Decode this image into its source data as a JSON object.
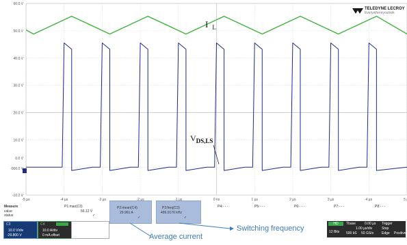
{
  "brand": {
    "name": "TELEDYNE LECROY",
    "tagline": "Everywhereyoulook"
  },
  "chart_data": {
    "type": "line",
    "x_unit": "µs",
    "xlim": [
      -5,
      5
    ],
    "x_ticks": [
      "-5 µs",
      "-4 µs",
      "-3 µs",
      "-2 µs",
      "-1 µs",
      "0 ns",
      "1 µs",
      "2 µs",
      "3 µs",
      "4 µs",
      "5 µs"
    ],
    "ylim": [
      -10.2,
      60
    ],
    "y_ticks": [
      "60.0 V",
      "50.0 V",
      "40.0 V",
      "30.0 V",
      "20.0 V",
      "10.0 V",
      "0.0 V",
      "-000.0 V",
      "-10.2 V"
    ],
    "grid": true,
    "series": [
      {
        "name": "I L",
        "color": "#3cb43c",
        "x": [
          -5.0,
          -4.8,
          -3.8,
          -2.8,
          -1.8,
          -0.8,
          0.2,
          1.2,
          2.2,
          3.2,
          4.2,
          5.0
        ],
        "y": [
          50.3,
          48.8,
          55.3,
          48.8,
          55.3,
          48.8,
          55.3,
          48.8,
          55.3,
          48.8,
          55.3,
          48.8
        ]
      },
      {
        "name": "VDS,LS",
        "color": "#1f2a8a",
        "x": [
          -5.0,
          -4.05,
          -4.0,
          -3.8,
          -3.8,
          -3.25,
          -3.05,
          -3.0,
          -2.8,
          -2.8,
          -2.25,
          -2.05,
          -2.0,
          -1.8,
          -1.8,
          -1.25,
          -1.05,
          -1.0,
          -0.8,
          -0.8,
          -0.25,
          -0.05,
          0.0,
          0.2,
          0.2,
          0.75,
          0.95,
          1.0,
          1.2,
          1.2,
          1.75,
          1.95,
          2.0,
          2.2,
          2.2,
          2.75,
          2.95,
          3.0,
          3.2,
          3.2,
          3.75,
          3.95,
          4.0,
          4.2,
          4.2,
          5.0
        ],
        "y": [
          0.0,
          0.0,
          45.5,
          43.2,
          -1.2,
          0.0,
          0.0,
          45.5,
          43.2,
          -1.2,
          0.0,
          0.0,
          45.5,
          43.2,
          -1.2,
          0.0,
          0.0,
          45.5,
          43.2,
          -1.2,
          0.0,
          0.0,
          45.5,
          43.2,
          -1.2,
          0.0,
          0.0,
          45.5,
          43.2,
          -1.2,
          0.0,
          0.0,
          45.5,
          43.2,
          -1.2,
          0.0,
          0.0,
          45.5,
          43.2,
          -1.2,
          0.0,
          0.0,
          45.5,
          43.2,
          -1.2,
          0.0
        ]
      }
    ],
    "annotations": [
      {
        "text_main": "I",
        "text_sub": "L",
        "target": "I L"
      },
      {
        "text_main": "V",
        "text_sub": "DS,LS",
        "target": "VDS,LS"
      }
    ]
  },
  "measure": {
    "header": "Measure",
    "rows": [
      "value",
      "status"
    ],
    "params": [
      {
        "label": "P1:max(C3)",
        "value": "56.12 V",
        "status": "✓"
      },
      {
        "label": "P2:mean(C4)",
        "value": "29.961 A",
        "status": "✓"
      },
      {
        "label": "P3:freq(C3)",
        "value": "499.9176 kHz",
        "status": "✓"
      },
      {
        "label": "P4:- - -",
        "value": "",
        "status": ""
      },
      {
        "label": "P5:- - -",
        "value": "",
        "status": ""
      },
      {
        "label": "P6:- - -",
        "value": "",
        "status": ""
      },
      {
        "label": "P7:- - -",
        "value": "",
        "status": ""
      },
      {
        "label": "P8:- - -",
        "value": "",
        "status": ""
      }
    ]
  },
  "channels": {
    "c3": {
      "label": "C3",
      "scale": "10.0 V/div",
      "offset": "-29.800 V"
    },
    "c4": {
      "label": "C4",
      "scale": "10.0 A/div",
      "offset": "0 mA offset"
    }
  },
  "timebase": {
    "hd_label": "HD",
    "bits": "12 Bits",
    "timebase_label": "Tbase",
    "timebase_value": "0.00 µs",
    "timediv": "1.00 µs/div",
    "sample_count": "500 kS",
    "sample_rate": "50 GS/s",
    "trigger_label": "Trigger",
    "trigger_mode": "Stop",
    "trigger_type": "Edge",
    "trigger_slope": "Positive"
  },
  "callouts": {
    "average_current": "Average current",
    "switching_frequency": "Switching frequency"
  }
}
